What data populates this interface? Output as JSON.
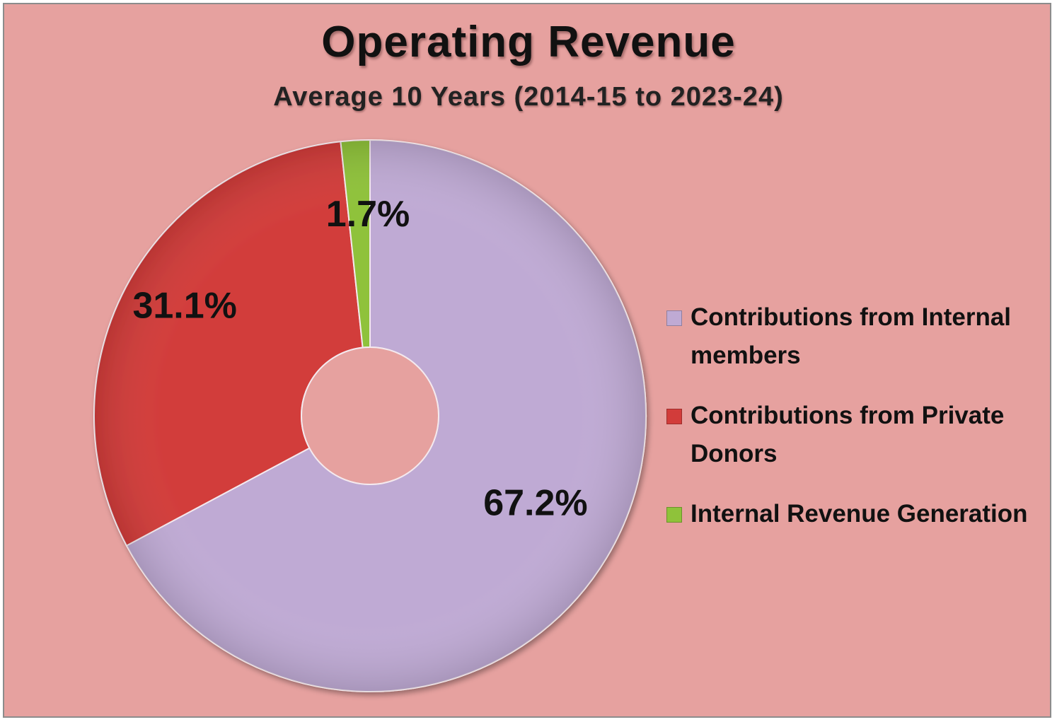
{
  "chart_data": {
    "type": "pie",
    "style": "donut",
    "title": "Operating Revenue",
    "subtitle": "Average 10 Years (2014-15 to 2023-24)",
    "slices": [
      {
        "label": "Contributions from Internal members",
        "value": 67.2,
        "data_label": "67.2%",
        "color": "#bfaad4"
      },
      {
        "label": "Contributions from Private Donors",
        "value": 31.1,
        "data_label": "31.1%",
        "color": "#d23c3a"
      },
      {
        "label": "Internal Revenue Generation",
        "value": 1.7,
        "data_label": "1.7%",
        "color": "#8fc23a"
      }
    ],
    "legend_position": "right",
    "background_color": "#e6a19f"
  }
}
